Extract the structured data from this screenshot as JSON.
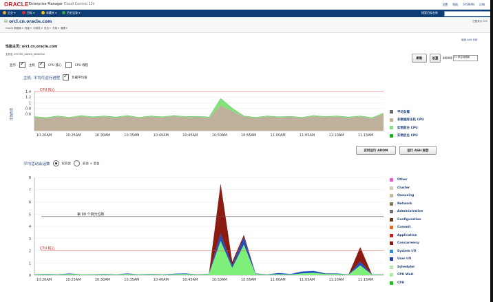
{
  "header": {
    "brand": "ORACLE",
    "product": "Enterprise Manager",
    "edition": "Cloud Control 12c",
    "links": [
      "设置",
      "帮助",
      "SYSMAN",
      "注销"
    ]
  },
  "menubar": {
    "items": [
      {
        "label": "企业",
        "icon": "enterprise-icon",
        "color": "#e8a33a"
      },
      {
        "label": "目标",
        "icon": "target-icon",
        "color": "#d0343a"
      },
      {
        "label": "收藏夹",
        "icon": "star-icon",
        "color": "#f2c318"
      },
      {
        "label": "历史记录",
        "icon": "history-icon",
        "color": "#35a845"
      }
    ],
    "search_label": "搜索目标名称"
  },
  "target": {
    "name": "orcl.cn.oracle.com",
    "menu": [
      "Oracle 数据库",
      "性能",
      "可用性",
      "安全",
      "方案",
      "管理"
    ],
    "right": "已登录为 SYS"
  },
  "page": {
    "title": "性能主页: orcl.cn.oracle.com",
    "subtitle": "主机名 SYSTEM_ADMIN_WINDOW",
    "right_link": "使用 ASH 分析",
    "actions": [
      "刷新",
      "设置"
    ],
    "refresh_label": "刷新频率",
    "refresh_value": "15 秒自动刷新"
  },
  "view": {
    "label": "显示",
    "options": [
      {
        "label": "主机",
        "checked": true
      },
      {
        "label": "CPU 核心",
        "checked": true
      },
      {
        "label": "CPU 线程",
        "checked": false
      }
    ]
  },
  "host_section": {
    "title": "主机: 平均可运行进程",
    "checkbox_label": "负载平均值",
    "checked": true
  },
  "host_legend": [
    {
      "label": "平均负载",
      "color": "#6e6e6e"
    },
    {
      "label": "非数据库主机 CPU",
      "color": "#bfb09b"
    },
    {
      "label": "实例前台 CPU",
      "color": "#7fe27a"
    },
    {
      "label": "实例后台 CPU",
      "color": "#17b21a"
    }
  ],
  "buttons": {
    "addm": "实时运行 ADDM",
    "ash": "运行 ASH 报告"
  },
  "aas_section": {
    "title": "平均活动会话数",
    "radio1": "仅前台",
    "radio2": "前台 + 后台"
  },
  "aas_legend": [
    {
      "label": "Other",
      "color": "#e060c8"
    },
    {
      "label": "Cluster",
      "color": "#d4c8b0"
    },
    {
      "label": "Queueing",
      "color": "#c4b998"
    },
    {
      "label": "Network",
      "color": "#8a7a5a"
    },
    {
      "label": "Administrative",
      "color": "#6e6e6e"
    },
    {
      "label": "Configuration",
      "color": "#6a3c1c"
    },
    {
      "label": "Commit",
      "color": "#e06a1a"
    },
    {
      "label": "Application",
      "color": "#c8201a"
    },
    {
      "label": "Concurrency",
      "color": "#8a1c12"
    },
    {
      "label": "System I/O",
      "color": "#2c8fd0"
    },
    {
      "label": "User I/O",
      "color": "#2040a8"
    },
    {
      "label": "Scheduler",
      "color": "#b8e8a8"
    },
    {
      "label": "CPU Wait",
      "color": "#a8f0a0"
    },
    {
      "label": "CPU",
      "color": "#17c21a"
    }
  ],
  "chart_data": [
    {
      "type": "area",
      "title": "主机: 平均可运行进程",
      "ylabel": "活动会话",
      "ylim": [
        0,
        1.4
      ],
      "yticks": [
        0.6,
        0.8,
        1,
        1.2,
        1.4
      ],
      "xticks": [
        "10:20AM",
        "10:25AM",
        "10:30AM",
        "10:35AM",
        "10:40AM",
        "10:45AM",
        "10:50AM",
        "10:55AM",
        "11:00AM",
        "11:05AM",
        "11:10AM",
        "11:15AM"
      ],
      "hline": {
        "label": "CPU 核心",
        "value": 1.4
      },
      "x": [
        0,
        2,
        4,
        6,
        8,
        10,
        12,
        14,
        16,
        18,
        20,
        22,
        24,
        26,
        28,
        30,
        32,
        34,
        36,
        38,
        40,
        42,
        44,
        46,
        48,
        50,
        52,
        54,
        56,
        58,
        60
      ],
      "series": [
        {
          "name": "非数据库主机 CPU",
          "values": [
            0.48,
            0.44,
            0.5,
            0.45,
            0.52,
            0.47,
            0.5,
            0.46,
            0.52,
            0.45,
            0.5,
            0.47,
            0.52,
            0.48,
            0.49,
            0.46,
            0.9,
            0.7,
            0.5,
            0.45,
            0.5,
            0.47,
            0.49,
            0.45,
            0.52,
            0.48,
            0.5,
            0.46,
            0.5,
            0.44,
            0.6
          ]
        },
        {
          "name": "实例前台 CPU",
          "values": [
            0.02,
            0.02,
            0.02,
            0.02,
            0.02,
            0.02,
            0.02,
            0.02,
            0.02,
            0.02,
            0.02,
            0.02,
            0.02,
            0.02,
            0.02,
            0.02,
            0.25,
            0.1,
            0.02,
            0.02,
            0.02,
            0.02,
            0.02,
            0.02,
            0.02,
            0.02,
            0.02,
            0.02,
            0.02,
            0.02,
            0.02
          ]
        },
        {
          "name": "实例后台 CPU",
          "values": [
            0.01,
            0.01,
            0.01,
            0.01,
            0.01,
            0.01,
            0.01,
            0.01,
            0.01,
            0.01,
            0.01,
            0.01,
            0.01,
            0.01,
            0.01,
            0.01,
            0.01,
            0.01,
            0.01,
            0.01,
            0.01,
            0.01,
            0.01,
            0.01,
            0.01,
            0.01,
            0.01,
            0.01,
            0.01,
            0.01,
            0.01
          ]
        }
      ]
    },
    {
      "type": "area",
      "title": "平均活动会话数",
      "ylim": [
        0,
        8
      ],
      "yticks": [
        0,
        1,
        2,
        3,
        4,
        5,
        6,
        7,
        8
      ],
      "xticks": [
        "10:20AM",
        "10:25AM",
        "10:30AM",
        "10:35AM",
        "10:40AM",
        "10:45AM",
        "10:50AM",
        "10:55AM",
        "11:00AM",
        "11:05AM",
        "11:10AM",
        "11:15AM"
      ],
      "hlines": [
        {
          "label": "第 99 个百分位数",
          "value": 4.8
        },
        {
          "label": "CPU 核心",
          "value": 2
        }
      ],
      "x": [
        0,
        2,
        4,
        6,
        8,
        10,
        12,
        14,
        16,
        18,
        20,
        22,
        24,
        26,
        28,
        30,
        32,
        34,
        36,
        38,
        40,
        42,
        44,
        46,
        48,
        50,
        52,
        54,
        56,
        58,
        60
      ],
      "series": [
        {
          "name": "CPU",
          "values": [
            0.05,
            0.08,
            0.05,
            0.1,
            0.06,
            0.05,
            0.08,
            0.05,
            0.1,
            0.05,
            0.08,
            0.05,
            0.08,
            0.1,
            0.05,
            0.1,
            2.8,
            0.6,
            2.5,
            0.1,
            0.05,
            0.08,
            0.05,
            0.15,
            0.2,
            0.1,
            0.1,
            0.05,
            0.8,
            0.05,
            0.05
          ]
        },
        {
          "name": "User I/O",
          "values": [
            0.02,
            0.03,
            0.02,
            0.05,
            0.02,
            0.02,
            0.03,
            0.02,
            0.05,
            0.02,
            0.03,
            0.02,
            0.05,
            0.05,
            0.02,
            0.03,
            0.6,
            0.2,
            0.6,
            0.05,
            0.02,
            0.1,
            0.05,
            0.15,
            0.15,
            0.05,
            0.05,
            0.02,
            0.3,
            0.02,
            0.02
          ]
        },
        {
          "name": "Concurrency",
          "values": [
            0,
            0,
            0,
            0,
            0,
            0,
            0,
            0,
            0,
            0,
            0,
            0,
            0,
            0,
            0,
            0,
            4.1,
            0.3,
            0.2,
            0,
            0,
            0,
            0,
            0,
            0,
            0,
            0,
            0,
            1.2,
            0,
            0
          ]
        }
      ]
    }
  ]
}
